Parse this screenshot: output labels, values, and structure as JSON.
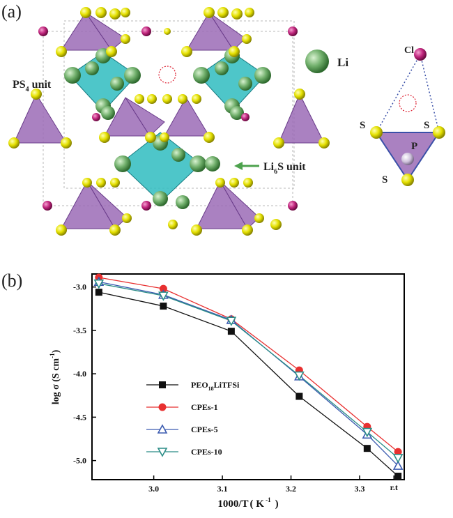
{
  "panel_a": {
    "label": "(a)",
    "labels": {
      "li": "Li",
      "cl": "Cl",
      "ps4_main": "PS",
      "ps4_sub": "4",
      "ps4_tail": " unit",
      "li6s_main": "Li",
      "li6s_sub": "6",
      "li6s_tail": "S unit",
      "s": "S",
      "p": "P"
    },
    "colors": {
      "li": "#4f9a4f",
      "s": "#e4e000",
      "cl": "#c0267d",
      "p": "#cfc2dc",
      "tetra": "#9b6bb6",
      "octa": "#2fbcc0"
    }
  },
  "panel_b": {
    "label": "(b)"
  },
  "chart_data": {
    "type": "line",
    "xlabel_main": "1000/T",
    "xlabel_unit": "( K",
    "xlabel_exp": " -1",
    "xlabel_close": ")",
    "ylabel_main": "log σ (S cm",
    "ylabel_exp": "-1",
    "ylabel_close": ")",
    "xlim": [
      2.91,
      3.365
    ],
    "ylim": [
      -5.22,
      -2.85
    ],
    "x_ticks": [
      3.0,
      3.1,
      3.2,
      3.3
    ],
    "x_tick_labels": [
      "3.0",
      "3.1",
      "3.2",
      "3.3"
    ],
    "x_extra_tick": {
      "value": 3.35,
      "label": "r.t"
    },
    "y_ticks": [
      -3.0,
      -3.5,
      -4.0,
      -4.5,
      -5.0
    ],
    "y_tick_labels": [
      "-3.0",
      "-3.5",
      "-4.0",
      "-4.5",
      "-5.0"
    ],
    "x": [
      2.92,
      3.014,
      3.113,
      3.212,
      3.311,
      3.356
    ],
    "series": [
      {
        "name": "PEO",
        "name_sub": "18",
        "name_tail": "LiTFSi",
        "color": "#111111",
        "marker": "square",
        "values": [
          -3.06,
          -3.22,
          -3.51,
          -4.26,
          -4.86,
          -5.18
        ]
      },
      {
        "name": "CPEs-1",
        "name_sub": "",
        "name_tail": "",
        "color": "#e83030",
        "marker": "circle",
        "values": [
          -2.89,
          -3.02,
          -3.37,
          -3.96,
          -4.61,
          -4.9
        ]
      },
      {
        "name": "CPEs-5",
        "name_sub": "",
        "name_tail": "",
        "color": "#3b5bb0",
        "marker": "triangle-up",
        "values": [
          -2.94,
          -3.09,
          -3.38,
          -4.03,
          -4.7,
          -5.06
        ]
      },
      {
        "name": "CPEs-10",
        "name_sub": "",
        "name_tail": "",
        "color": "#2a8c86",
        "marker": "triangle-down",
        "values": [
          -2.96,
          -3.1,
          -3.39,
          -4.02,
          -4.67,
          -4.97
        ]
      }
    ]
  }
}
